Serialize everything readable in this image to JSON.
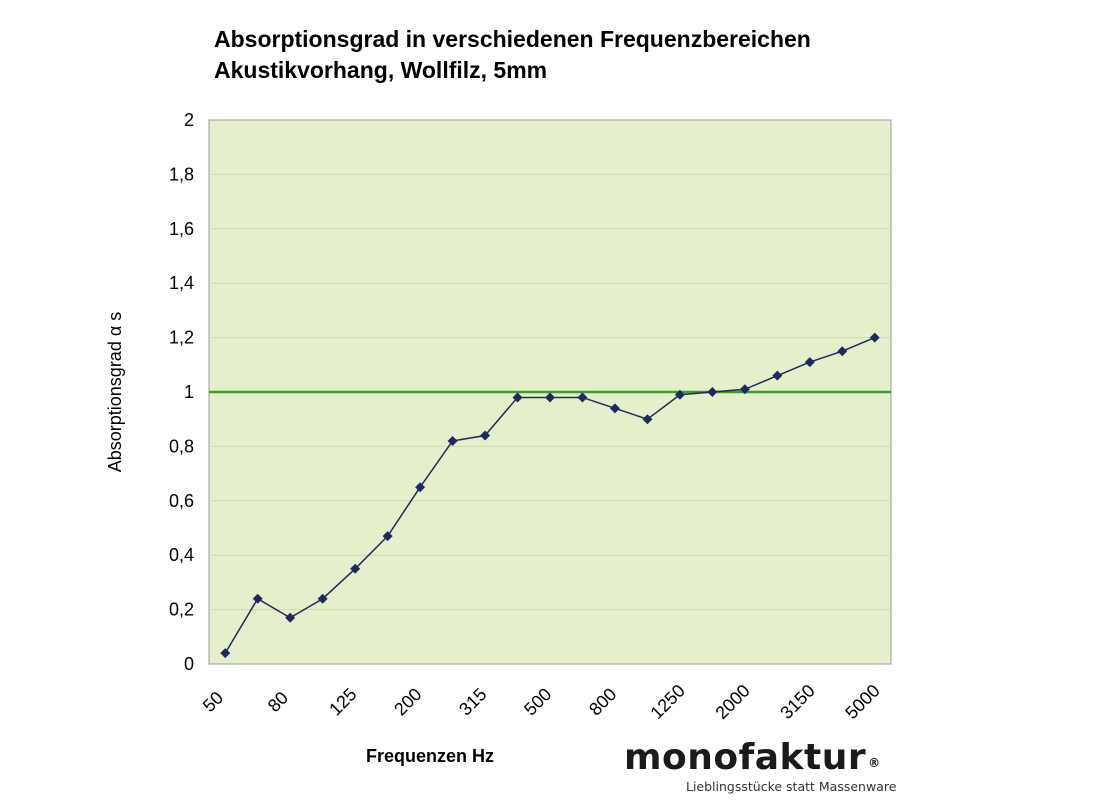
{
  "chart_data": {
    "type": "line",
    "title": "Absorptionsgrad in verschiedenen Frequenzbereichen",
    "subtitle": "Akustikvorhang, Wollfilz, 5mm",
    "xlabel": "Frequenzen Hz",
    "ylabel": "Absorptionsgrad α s",
    "ylim": [
      0,
      2
    ],
    "yticks": [
      "0",
      "0,2",
      "0,4",
      "0,6",
      "0,8",
      "1",
      "1,2",
      "1,4",
      "1,6",
      "1,8",
      "2"
    ],
    "x": [
      "50",
      "63",
      "80",
      "100",
      "125",
      "160",
      "200",
      "250",
      "315",
      "400",
      "500",
      "630",
      "800",
      "1000",
      "1250",
      "1600",
      "2000",
      "2500",
      "3150",
      "4000",
      "5000"
    ],
    "xtick_labels": [
      "50",
      "",
      "80",
      "",
      "125",
      "",
      "200",
      "",
      "315",
      "",
      "500",
      "",
      "800",
      "",
      "1250",
      "",
      "2000",
      "",
      "3150",
      "",
      "5000"
    ],
    "values": [
      0.04,
      0.24,
      0.17,
      0.24,
      0.35,
      0.47,
      0.65,
      0.82,
      0.84,
      0.98,
      0.98,
      0.98,
      0.94,
      0.9,
      0.99,
      1.0,
      1.01,
      1.06,
      1.11,
      1.15,
      1.2
    ],
    "reference_line": 1,
    "grid": true,
    "colors": {
      "plot_background": "#e6efcb",
      "gridline": "#cfd8b4",
      "series": "#1f2a5c",
      "reference_line": "#3aa02a"
    }
  },
  "brand": {
    "name": "monofaktur",
    "registered": "®",
    "tagline": "Lieblingsstücke statt Massenware"
  }
}
